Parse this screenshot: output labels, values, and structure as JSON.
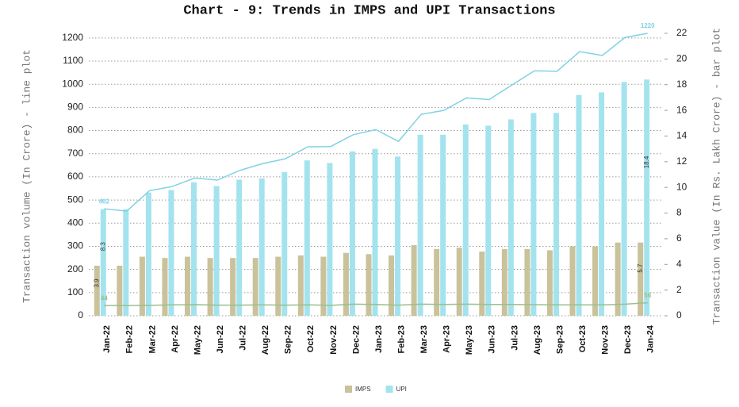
{
  "chart_data": {
    "type": "combo",
    "title": "Chart - 9: Trends in IMPS and UPI Transactions",
    "ylabel": "Transaction volume (In Crore) - line plot",
    "y2label": "Transaction value (In Rs. Lakh Crore) - bar plot",
    "categories": [
      "Jan-22",
      "Feb-22",
      "Mar-22",
      "Apr-22",
      "May-22",
      "Jun-22",
      "Jul-22",
      "Aug-22",
      "Sep-22",
      "Oct-22",
      "Nov-22",
      "Dec-22",
      "Jan-23",
      "Feb-23",
      "Mar-23",
      "Apr-23",
      "May-23",
      "Jun-23",
      "Jul-23",
      "Aug-23",
      "Sep-23",
      "Oct-23",
      "Nov-23",
      "Dec-23",
      "Jan-24"
    ],
    "ylim": [
      0,
      1220
    ],
    "yticks": [
      0,
      100,
      200,
      300,
      400,
      500,
      600,
      700,
      800,
      900,
      1000,
      1100,
      1200
    ],
    "y2lim": [
      0,
      22
    ],
    "y2ticks": [
      0,
      2,
      4,
      6,
      8,
      10,
      12,
      14,
      16,
      18,
      20,
      22
    ],
    "grid": true,
    "legend": "bottom",
    "series": [
      {
        "name": "IMPS",
        "type": "bar",
        "axis": "y2",
        "color": "#c9c29b",
        "values": [
          3.9,
          3.9,
          4.6,
          4.5,
          4.6,
          4.5,
          4.5,
          4.5,
          4.6,
          4.7,
          4.6,
          4.9,
          4.8,
          4.7,
          5.5,
          5.2,
          5.3,
          5.0,
          5.2,
          5.2,
          5.1,
          5.4,
          5.4,
          5.7,
          5.7
        ],
        "value_labels": [
          "3.9",
          null,
          null,
          null,
          null,
          null,
          null,
          null,
          null,
          null,
          null,
          null,
          null,
          null,
          null,
          null,
          null,
          null,
          null,
          null,
          null,
          null,
          null,
          null,
          "5.7"
        ]
      },
      {
        "name": "UPI",
        "type": "bar",
        "axis": "y2",
        "color": "#a3e3ee",
        "values": [
          8.3,
          8.3,
          9.6,
          9.8,
          10.4,
          10.1,
          10.6,
          10.7,
          11.2,
          12.1,
          11.9,
          12.8,
          13.0,
          12.4,
          14.1,
          14.1,
          14.9,
          14.8,
          15.3,
          15.8,
          15.8,
          17.2,
          17.4,
          18.2,
          18.4
        ],
        "value_labels": [
          "8.3",
          null,
          null,
          null,
          null,
          null,
          null,
          null,
          null,
          null,
          null,
          null,
          null,
          null,
          null,
          null,
          null,
          null,
          null,
          null,
          null,
          null,
          null,
          null,
          "18.4"
        ]
      },
      {
        "type": "line",
        "color": "#9bbf8f",
        "values": [
          44,
          44,
          45,
          47,
          48,
          46,
          46,
          47,
          46,
          47,
          45,
          50,
          49,
          46,
          50,
          49,
          50,
          49,
          49,
          48,
          47,
          47,
          47,
          50,
          56
        ],
        "value_labels": [
          "44",
          null,
          null,
          null,
          null,
          null,
          null,
          null,
          null,
          null,
          null,
          null,
          null,
          null,
          null,
          null,
          null,
          null,
          null,
          null,
          null,
          null,
          null,
          null,
          "56"
        ]
      },
      {
        "type": "line",
        "color": "#7fd2e6",
        "values": [
          462,
          452,
          540,
          558,
          595,
          586,
          628,
          657,
          678,
          730,
          731,
          782,
          804,
          753,
          870,
          887,
          941,
          934,
          996,
          1058,
          1056,
          1141,
          1124,
          1202,
          1220
        ],
        "value_labels": [
          "462",
          null,
          null,
          null,
          null,
          null,
          null,
          null,
          null,
          null,
          null,
          null,
          null,
          null,
          null,
          null,
          null,
          null,
          null,
          null,
          null,
          null,
          null,
          null,
          "1220"
        ]
      }
    ]
  }
}
